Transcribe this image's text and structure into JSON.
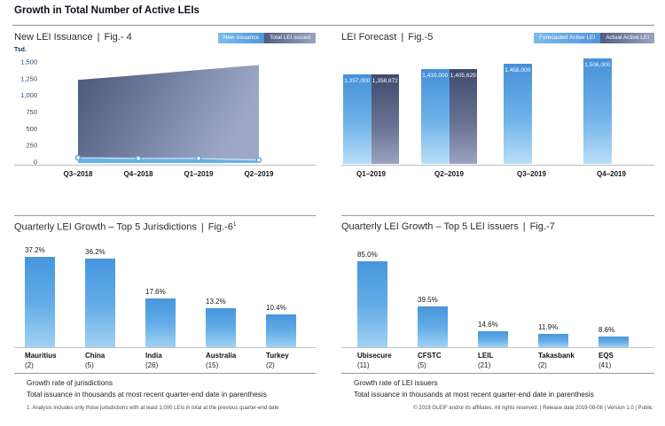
{
  "page": {
    "title": "Growth in Total Number of Active LEIs",
    "separator": "|",
    "copyright": "© 2019 GLEIF and/or its affiliates. All rights reserved.  |  Release date 2019-08-08  |  Version 1.0  |  Public"
  },
  "colors": {
    "light_blue": "#4f96d9",
    "pale_blue": "#b9def7",
    "dark_slate": "#4a5778",
    "axis_label_blue": "#2f4e73"
  },
  "fig4": {
    "title": "New LEI Issuance",
    "fig_label": "Fig.- 4",
    "unit_label": "Tsd.",
    "legend": [
      "New issuance",
      "Total LEI issued"
    ]
  },
  "fig5": {
    "title": "LEI Forecast",
    "fig_label": "Fig.-5",
    "legend": [
      "Forecasted Active LEI",
      "Actual Active LEI"
    ]
  },
  "fig6": {
    "title": "Quarterly LEI Growth – Top 5 Jurisdictions",
    "fig_label": "Fig.-6",
    "fig_superscript": "1",
    "footer_line1": "Growth rate of jurisdictions",
    "footer_line2": "Total issuance in thousands at most recent quarter-end date in parenthesis",
    "footnote": "1. Analysis includes only those jurisdictions with at least 1,000 LEIs in total at the previous quarter-end date"
  },
  "fig7": {
    "title": "Quarterly LEI Growth – Top 5 LEI issuers",
    "fig_label": "Fig.-7",
    "footer_line1": "Growth rate of LEI issuers",
    "footer_line2": "Total issuance in thousands at most recent quarter-end date in parenthesis"
  },
  "chart_data": [
    {
      "id": "fig4",
      "type": "area",
      "title": "New LEI Issuance | Fig.- 4",
      "ylabel": "Tsd.",
      "x": [
        "Q3–2018",
        "Q4–2018",
        "Q1–2019",
        "Q2–2019"
      ],
      "series": [
        {
          "name": "New issuance",
          "values": [
            65,
            55,
            55,
            30
          ]
        },
        {
          "name": "Total LEI issued",
          "values": [
            1230,
            1305,
            1380,
            1455
          ]
        }
      ],
      "ylim": [
        0,
        1500
      ],
      "yticks": [
        0,
        250,
        500,
        750,
        1000,
        1250,
        1500
      ],
      "ytick_labels": [
        "0",
        "250",
        "500",
        "750",
        "1,000",
        "1,250",
        "1,500"
      ],
      "grid": false,
      "legend_position": "top-right"
    },
    {
      "id": "fig5",
      "type": "bar",
      "title": "LEI Forecast | Fig.-5",
      "categories": [
        "Q1–2019",
        "Q2–2019",
        "Q3–2019",
        "Q4–2019"
      ],
      "series": [
        {
          "name": "Forecasted Active LEI",
          "values": [
            1357000,
            1410000,
            1458000,
            1506000
          ],
          "labels": [
            "1,357,000",
            "1,410,000",
            "1,458,000",
            "1,506,000"
          ]
        },
        {
          "name": "Actual Active LEI",
          "values": [
            1358872,
            1405629,
            null,
            null
          ],
          "labels": [
            "1,358,872",
            "1,405,629",
            null,
            null
          ]
        }
      ],
      "grid": false,
      "legend_position": "top-right"
    },
    {
      "id": "fig6",
      "type": "bar",
      "title": "Quarterly LEI Growth – Top 5 Jurisdictions | Fig.-6 (1)",
      "categories": [
        "Mauritius",
        "China",
        "India",
        "Australia",
        "Turkey"
      ],
      "category_sublabels": [
        "(2)",
        "(5)",
        "(26)",
        "(15)",
        "(2)"
      ],
      "values": [
        37.2,
        36.2,
        17.6,
        13.2,
        10.4
      ],
      "value_labels": [
        "37.2%",
        "36.2%",
        "17.6%",
        "13.2%",
        "10.4%"
      ],
      "grid": false
    },
    {
      "id": "fig7",
      "type": "bar",
      "title": "Quarterly LEI Growth – Top 5 LEI issuers | Fig.-7",
      "categories": [
        "Ubisecure",
        "CFSTC",
        "LEIL",
        "Takasbank",
        "EQS"
      ],
      "category_sublabels": [
        "(11)",
        "(5)",
        "(21)",
        "(2)",
        "(41)"
      ],
      "values": [
        85.0,
        39.5,
        14.6,
        11.9,
        8.6
      ],
      "value_labels": [
        "85.0%",
        "39.5%",
        "14.6%",
        "11.9%",
        "8.6%"
      ],
      "grid": false
    }
  ]
}
